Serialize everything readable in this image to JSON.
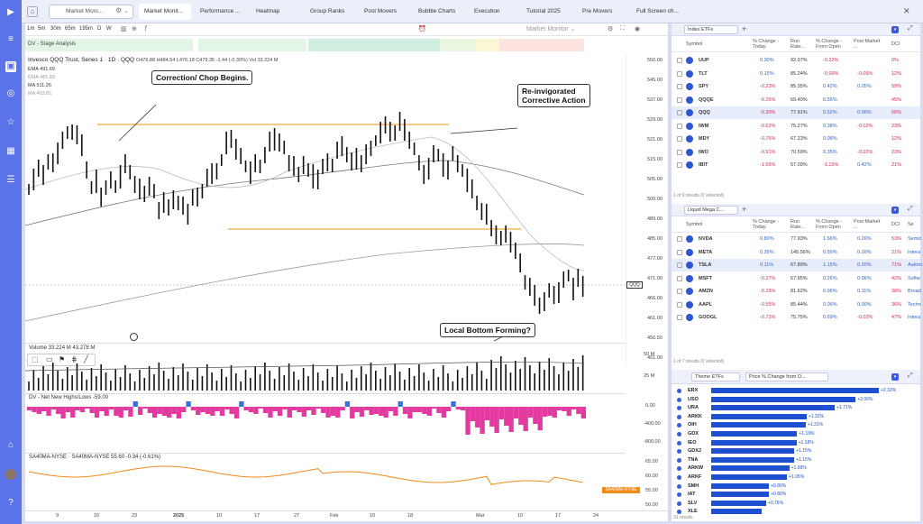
{
  "topbar": {
    "watchlist": "Market Moni...",
    "tabs": [
      "Market Monit...",
      "Performance ...",
      "Heatmap",
      "Group Ranks",
      "Post Movers",
      "Bubble Charts",
      "Execution",
      "Tutorial 2025",
      "Pre Movers",
      "Full Screen ch..."
    ]
  },
  "chart": {
    "layout_name": "Market Monitor",
    "intervals": [
      "1m",
      "5m",
      "30m",
      "65m",
      "195m",
      "D",
      "W"
    ],
    "stage_label": "DV - Stage Analysis",
    "title": "Invesco QQQ Trust, Series 1 · 1D · QQQ",
    "ohlc": "O476.88 H484.54 L476.18 C479.35 -1.44 (-0.30%) Vol 33.224 M",
    "ma_labels": [
      "EMA 491.69",
      "EMA 481.83",
      "MA 511.26",
      "MA 493.81"
    ],
    "price_ticks": [
      "550.00",
      "545.00",
      "537.00",
      "529.00",
      "521.00",
      "515.00",
      "505.00",
      "500.00",
      "489.00",
      "485.00",
      "477.00",
      "471.00",
      "466.00",
      "461.00",
      "456.50",
      "451.00"
    ],
    "current_price_label": "QQQ",
    "annotations": [
      "Correction/ Chop Begins.",
      "Re-invigorated\nCorrective Action",
      "Local Bottom Forming?"
    ],
    "volume_label": "Volume 33.224 M 43.278 M",
    "volume_ticks": [
      "50 M",
      "25 M"
    ],
    "nnhl_label": "DV - Net New Highs/Lows  -59.00",
    "nnhl_ticks": [
      "0.00",
      "-400.00",
      "-800.00"
    ],
    "breadth_label": "SA40MA-NYSE · SA40MA-NYSE  55.60  -0.34 (-0.61%)",
    "breadth_ticks": [
      "65.00",
      "60.00",
      "55.00",
      "50.00"
    ],
    "breadth_badge": "SA40MA-NYSE",
    "x_ticks": [
      "9",
      "16",
      "23",
      "2025",
      "10",
      "17",
      "27",
      "Feb",
      "10",
      "18",
      "Mar",
      "10",
      "17",
      "24"
    ]
  },
  "index_etfs": {
    "title": "Index ETFs",
    "columns": [
      "Symbol",
      "% Change - Today",
      "Run Rate...",
      "% Change - From Open",
      "Post Market ...",
      "DCI"
    ],
    "rows": [
      {
        "sym": "UUP",
        "chg": "0.30%",
        "run": "92.07%",
        "open": "-0.22%",
        "post": "",
        "dci": "0%"
      },
      {
        "sym": "TLT",
        "chg": "0.15%",
        "run": "85.24%",
        "open": "-0.99%",
        "post": "-0.09%",
        "dci": "12%"
      },
      {
        "sym": "SPY",
        "chg": "-0.23%",
        "run": "85.35%",
        "open": "0.42%",
        "post": "0.05%",
        "dci": "59%"
      },
      {
        "sym": "QQQE",
        "chg": "-0.26%",
        "run": "69.40%",
        "open": "0.55%",
        "post": "",
        "dci": "45%"
      },
      {
        "sym": "QQQ",
        "chg": "-0.30%",
        "run": "77.91%",
        "open": "0.52%",
        "post": "0.06%",
        "dci": "56%"
      },
      {
        "sym": "IWM",
        "chg": "-0.62%",
        "run": "75.27%",
        "open": "0.38%",
        "post": "-0.02%",
        "dci": "23%"
      },
      {
        "sym": "MDY",
        "chg": "-0.76%",
        "run": "67.23%",
        "open": "0.08%",
        "post": "",
        "dci": "12%"
      },
      {
        "sym": "IWO",
        "chg": "-0.91%",
        "run": "70.59%",
        "open": "0.35%",
        "post": "-0.02%",
        "dci": "23%"
      },
      {
        "sym": "IBIT",
        "chg": "-1.56%",
        "run": "57.09%",
        "open": "-1.15%",
        "post": "0.42%",
        "dci": "21%"
      }
    ],
    "footer": "1 of 9 results (0 selected)"
  },
  "mega_caps": {
    "title": "Liquid Mega C...",
    "columns": [
      "Symbol",
      "% Change - Today",
      "Run Rate...",
      "% Change - From Open",
      "Post Market ...",
      "DCI",
      "Se"
    ],
    "rows": [
      {
        "sym": "NVDA",
        "chg": "0.80%",
        "run": "77.93%",
        "open": "1.66%",
        "post": "0.26%",
        "dci": "53%",
        "sec": "Semic"
      },
      {
        "sym": "META",
        "chg": "0.35%",
        "run": "145.56%",
        "open": "0.55%",
        "post": "0.16%",
        "dci": "21%",
        "sec": "Intera"
      },
      {
        "sym": "TSLA",
        "chg": "0.11%",
        "run": "67.80%",
        "open": "1.15%",
        "post": "0.20%",
        "dci": "71%",
        "sec": "Autom"
      },
      {
        "sym": "MSFT",
        "chg": "-0.27%",
        "run": "67.95%",
        "open": "0.26%",
        "post": "0.06%",
        "dci": "42%",
        "sec": "Softw"
      },
      {
        "sym": "AMZN",
        "chg": "-0.29%",
        "run": "81.62%",
        "open": "0.96%",
        "post": "0.11%",
        "dci": "38%",
        "sec": "Broad"
      },
      {
        "sym": "AAPL",
        "chg": "-0.55%",
        "run": "85.44%",
        "open": "0.06%",
        "post": "0.00%",
        "dci": "36%",
        "sec": "Techn"
      },
      {
        "sym": "GOOGL",
        "chg": "-0.71%",
        "run": "75.75%",
        "open": "0.69%",
        "post": "-0.02%",
        "dci": "47%",
        "sec": "Intera"
      }
    ],
    "footer": "1 of 7 results (0 selected)"
  },
  "themes": {
    "filter1": "Theme ETFs",
    "filter2": "Price % Change from O...",
    "footer": "31 results",
    "chart_data": {
      "type": "bar",
      "categories": [
        "ERX",
        "USO",
        "URA",
        "ARKK",
        "OIH",
        "GDX",
        "IEO",
        "GDXJ",
        "TNA",
        "ARKW",
        "ARKF",
        "SMH",
        "IAT",
        "SLV",
        "XLE"
      ],
      "values": [
        2.32,
        2.0,
        1.71,
        1.32,
        1.31,
        1.19,
        1.18,
        1.15,
        1.15,
        1.08,
        1.05,
        0.8,
        0.8,
        0.76,
        0.7
      ],
      "labels": [
        "+2.32%",
        "+2.00%",
        "+1.71%",
        "+1.32%",
        "+1.31%",
        "+1.19%",
        "+1.18%",
        "+1.15%",
        "+1.15%",
        "+1.08%",
        "+1.05%",
        "+0.80%",
        "+0.80%",
        "+0.76%",
        ""
      ]
    }
  },
  "colors": {
    "accent": "#5b73e8",
    "bar": "#1f4fd1",
    "neg": "#e0245e",
    "pos": "#2e5fd1"
  }
}
